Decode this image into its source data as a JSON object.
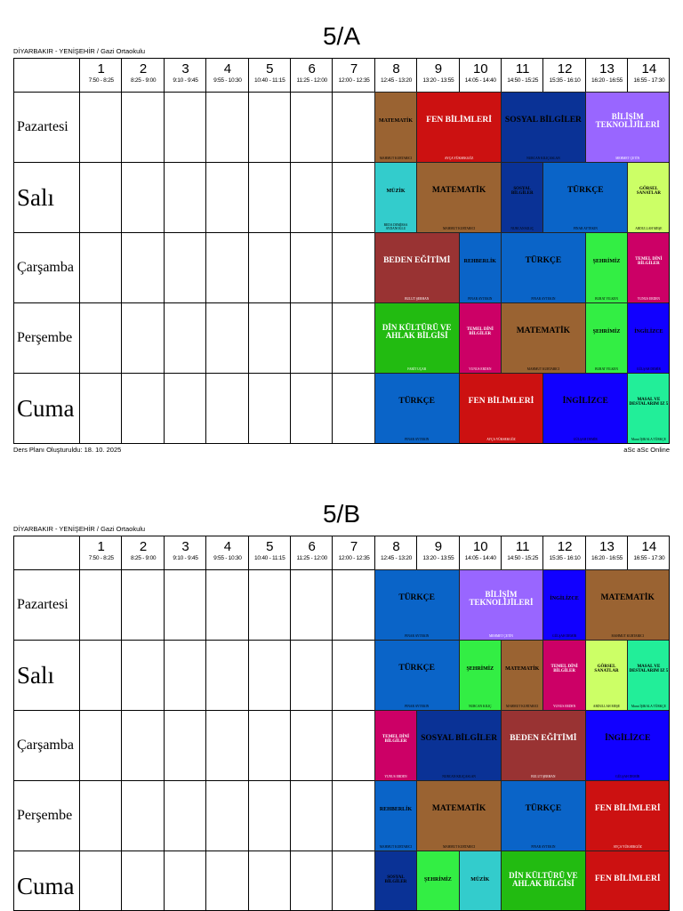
{
  "colors": {
    "MATEMATİK": "#9a6332",
    "FEN BİLİMLERİ": "#cc1111",
    "SOSYAL BİLGİLER": "#0a3296",
    "BİLİŞİM TEKNOLİJİLERİ": "#9966ff",
    "MÜZİK": "#33cccc",
    "TÜRKÇE": "#0a64c8",
    "GÖRSEL SANATLAR": "#ccff66",
    "BEDEN EĞİTİMİ": "#993333",
    "REHBERLİK": "#0a64c8",
    "ŞEHRİMİZ": "#33ee44",
    "TEMEL DİNİ BİLGİLER": "#cc0066",
    "DİN KÜLTÜRÜ VE AHLAK BİLGİSİ": "#22bb11",
    "İNGİLİZCE": "#1100ff",
    "MASAL VE DESTALARIM IZ 5": "#22ee99"
  },
  "sheets": [
    {
      "title": "5/A",
      "school": "DİYARBAKIR - YENİŞEHİR / Gazi Ortaokulu",
      "created": "Ders Planı Oluşturuldu: 18. 10. 2025",
      "credit": "aSc aSc Online",
      "periods": [
        {
          "num": "1",
          "time": "7:50 - 8:25"
        },
        {
          "num": "2",
          "time": "8:25 - 9:00"
        },
        {
          "num": "3",
          "time": "9:10 - 9:45"
        },
        {
          "num": "4",
          "time": "9:55 - 10:30"
        },
        {
          "num": "5",
          "time": "10:40 - 11:15"
        },
        {
          "num": "6",
          "time": "11:25 - 12:00"
        },
        {
          "num": "7",
          "time": "12:00 - 12:35"
        },
        {
          "num": "8",
          "time": "12:45 - 13:20"
        },
        {
          "num": "9",
          "time": "13:20 - 13:55"
        },
        {
          "num": "10",
          "time": "14:05 - 14:40"
        },
        {
          "num": "11",
          "time": "14:50 - 15:25"
        },
        {
          "num": "12",
          "time": "15:35 - 16:10"
        },
        {
          "num": "13",
          "time": "16:20 - 16:55"
        },
        {
          "num": "14",
          "time": "16:55 - 17:30"
        }
      ],
      "days": [
        {
          "name": "Pazartesi",
          "big": false,
          "lessons": [
            {
              "from": 8,
              "span": 1,
              "subject": "MATEMATİK",
              "teacher": "MAHMUT KURTARICI"
            },
            {
              "from": 9,
              "span": 2,
              "subject": "FEN BİLİMLERİ",
              "teacher": "AYÇA YÜKSEKGÖZ"
            },
            {
              "from": 11,
              "span": 2,
              "subject": "SOSYAL BİLGİLER",
              "teacher": "NURCAN KILIÇASLAN"
            },
            {
              "from": 13,
              "span": 2,
              "subject": "BİLİŞİM TEKNOLİJİLERİ",
              "teacher": "MEHMET ÇETİN"
            }
          ]
        },
        {
          "name": "Salı",
          "big": true,
          "lessons": [
            {
              "from": 8,
              "span": 1,
              "subject": "MÜZİK",
              "teacher": "BEDA DEMİRSA AYDANOĞLU"
            },
            {
              "from": 9,
              "span": 2,
              "subject": "MATEMATİK",
              "teacher": "MAHMUT KURTARICI"
            },
            {
              "from": 11,
              "span": 1,
              "subject": "SOSYAL BİLGİLER",
              "teacher": "NURCAN KILIÇ"
            },
            {
              "from": 12,
              "span": 2,
              "subject": "TÜRKÇE",
              "teacher": "PINAR AYTEKIN"
            },
            {
              "from": 14,
              "span": 1,
              "subject": "GÖRSEL SANATLAR",
              "teacher": "ABDULLAH MEŞE"
            }
          ]
        },
        {
          "name": "Çarşamba",
          "big": false,
          "lessons": [
            {
              "from": 8,
              "span": 2,
              "subject": "BEDEN EĞİTİMİ",
              "teacher": "BULUT ŞERHAN"
            },
            {
              "from": 10,
              "span": 1,
              "subject": "REHBERLİK",
              "teacher": "PINAR AYTEKIN"
            },
            {
              "from": 11,
              "span": 2,
              "subject": "TÜRKÇE",
              "teacher": "PINAR AYTEKIN"
            },
            {
              "from": 13,
              "span": 1,
              "subject": "ŞEHRİMİZ",
              "teacher": "BURAT YILKEN"
            },
            {
              "from": 14,
              "span": 1,
              "subject": "TEMEL DİNİ BİLGİLER",
              "teacher": "YUNUS ERDEN"
            }
          ]
        },
        {
          "name": "Perşembe",
          "big": false,
          "lessons": [
            {
              "from": 8,
              "span": 2,
              "subject": "DİN KÜLTÜRÜ VE AHLAK BİLGİSİ",
              "teacher": "FARİT UÇAR"
            },
            {
              "from": 10,
              "span": 1,
              "subject": "TEMEL DİNİ BİLGİLER",
              "teacher": "YUNUS ERDEN"
            },
            {
              "from": 11,
              "span": 2,
              "subject": "MATEMATİK",
              "teacher": "MAHMUT KURTARICI"
            },
            {
              "from": 13,
              "span": 1,
              "subject": "ŞEHRİMİZ",
              "teacher": "BURAT YILKEN"
            },
            {
              "from": 14,
              "span": 1,
              "subject": "İNGİLİZCE",
              "teacher": "GÜLŞAH DEMİR"
            }
          ]
        },
        {
          "name": "Cuma",
          "big": true,
          "lessons": [
            {
              "from": 8,
              "span": 2,
              "subject": "TÜRKÇE",
              "teacher": "PINAR AYTEKIN"
            },
            {
              "from": 10,
              "span": 2,
              "subject": "FEN BİLİMLERİ",
              "teacher": "AYÇA YÜKSEKGÖZ"
            },
            {
              "from": 12,
              "span": 2,
              "subject": "İNGİLİZCE",
              "teacher": "GÜLŞAH DEMİR"
            },
            {
              "from": 14,
              "span": 1,
              "subject": "MASAL VE DESTALARIM IZ 5",
              "teacher": "Murat İŞIKALA TÜRKÇE"
            }
          ]
        }
      ]
    },
    {
      "title": "5/B",
      "school": "DİYARBAKIR - YENİŞEHİR / Gazi Ortaokulu",
      "created": "",
      "credit": "",
      "periods": [
        {
          "num": "1",
          "time": "7:50 - 8:25"
        },
        {
          "num": "2",
          "time": "8:25 - 9:00"
        },
        {
          "num": "3",
          "time": "9:10 - 9:45"
        },
        {
          "num": "4",
          "time": "9:55 - 10:30"
        },
        {
          "num": "5",
          "time": "10:40 - 11:15"
        },
        {
          "num": "6",
          "time": "11:25 - 12:00"
        },
        {
          "num": "7",
          "time": "12:00 - 12:35"
        },
        {
          "num": "8",
          "time": "12:45 - 13:20"
        },
        {
          "num": "9",
          "time": "13:20 - 13:55"
        },
        {
          "num": "10",
          "time": "14:05 - 14:40"
        },
        {
          "num": "11",
          "time": "14:50 - 15:25"
        },
        {
          "num": "12",
          "time": "15:35 - 16:10"
        },
        {
          "num": "13",
          "time": "16:20 - 16:55"
        },
        {
          "num": "14",
          "time": "16:55 - 17:30"
        }
      ],
      "days": [
        {
          "name": "Pazartesi",
          "big": false,
          "lessons": [
            {
              "from": 8,
              "span": 2,
              "subject": "TÜRKÇE",
              "teacher": "PINAR AYTEKIN"
            },
            {
              "from": 10,
              "span": 2,
              "subject": "BİLİŞİM TEKNOLİJİLERİ",
              "teacher": "MEHMET ÇETİN"
            },
            {
              "from": 12,
              "span": 1,
              "subject": "İNGİLİZCE",
              "teacher": "GÜLŞAH DEMİR"
            },
            {
              "from": 13,
              "span": 2,
              "subject": "MATEMATİK",
              "teacher": "MAHMUT KURTARICI"
            }
          ]
        },
        {
          "name": "Salı",
          "big": true,
          "lessons": [
            {
              "from": 8,
              "span": 2,
              "subject": "TÜRKÇE",
              "teacher": "PINAR AYTEKIN"
            },
            {
              "from": 10,
              "span": 1,
              "subject": "ŞEHRİMİZ",
              "teacher": "NURCAN KILIÇ"
            },
            {
              "from": 11,
              "span": 1,
              "subject": "MATEMATİK",
              "teacher": "MAHMUT KURTARICI"
            },
            {
              "from": 12,
              "span": 1,
              "subject": "TEMEL DİNİ BİLGİLER",
              "teacher": "YUNUS ERDEN"
            },
            {
              "from": 13,
              "span": 1,
              "subject": "GÖRSEL SANATLAR",
              "teacher": "ABDULLAH MEŞE"
            },
            {
              "from": 14,
              "span": 1,
              "subject": "MASAL VE DESTALARIM IZ 5",
              "teacher": "Murat İŞIKALA TÜRKÇE"
            }
          ]
        },
        {
          "name": "Çarşamba",
          "big": false,
          "lessons": [
            {
              "from": 8,
              "span": 1,
              "subject": "TEMEL DİNİ BİLGİLER",
              "teacher": "YUNUS ERDEN"
            },
            {
              "from": 9,
              "span": 2,
              "subject": "SOSYAL BİLGİLER",
              "teacher": "NURCAN KILIÇASLAN"
            },
            {
              "from": 11,
              "span": 2,
              "subject": "BEDEN EĞİTİMİ",
              "teacher": "BULUT ŞERHAN"
            },
            {
              "from": 13,
              "span": 2,
              "subject": "İNGİLİZCE",
              "teacher": "GÜLŞAH DEMİR"
            }
          ]
        },
        {
          "name": "Perşembe",
          "big": false,
          "lessons": [
            {
              "from": 8,
              "span": 1,
              "subject": "REHBERLİK",
              "teacher": "MAHMUT KURTARICI"
            },
            {
              "from": 9,
              "span": 2,
              "subject": "MATEMATİK",
              "teacher": "MAHMUT KURTARICI"
            },
            {
              "from": 11,
              "span": 2,
              "subject": "TÜRKÇE",
              "teacher": "PINAR AYTEKIN"
            },
            {
              "from": 13,
              "span": 2,
              "subject": "FEN BİLİMLERİ",
              "teacher": "AYÇA YÜKSEKGÖZ"
            }
          ]
        },
        {
          "name": "Cuma",
          "big": true,
          "lessons": [
            {
              "from": 8,
              "span": 1,
              "subject": "SOSYAL BİLGİLER",
              "teacher": ""
            },
            {
              "from": 9,
              "span": 1,
              "subject": "ŞEHRİMİZ",
              "teacher": ""
            },
            {
              "from": 10,
              "span": 1,
              "subject": "MÜZİK",
              "teacher": ""
            },
            {
              "from": 11,
              "span": 2,
              "subject": "DİN KÜLTÜRÜ VE AHLAK BİLGİSİ",
              "teacher": ""
            },
            {
              "from": 13,
              "span": 2,
              "subject": "FEN BİLİMLERİ",
              "teacher": ""
            }
          ]
        }
      ]
    }
  ],
  "overrides": {
    "MATEMATİK_5B_perşembe_8": "REHBERLİK"
  }
}
